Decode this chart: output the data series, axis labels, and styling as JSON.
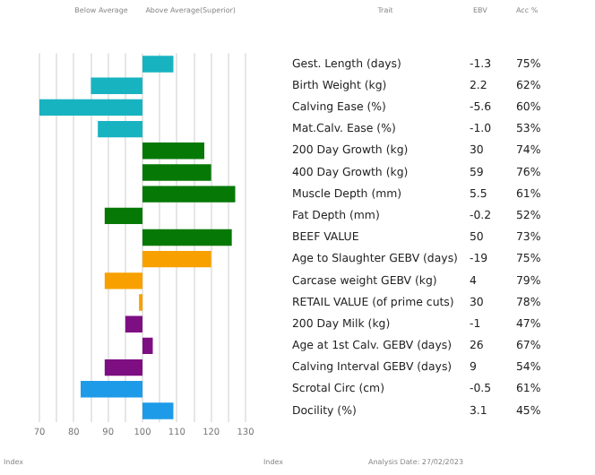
{
  "chart_data": {
    "type": "bar",
    "orientation": "horizontal",
    "xlabel": "Index",
    "categories": [
      "Gest. Length (days)",
      "Birth Weight (kg)",
      "Calving Ease (%)",
      "Mat.Calv. Ease (%)",
      "200 Day Growth (kg)",
      "400 Day Growth (kg)",
      "Muscle Depth (mm)",
      "Fat Depth (mm)",
      "BEEF VALUE",
      "Age to Slaughter GEBV (days)",
      "Carcase weight GEBV (kg)",
      "RETAIL VALUE (of prime cuts)",
      "200 Day Milk (kg)",
      "Age at 1st Calv. GEBV (days)",
      "Calving Interval GEBV (days)",
      "Scrotal Circ (cm)",
      "Docility (%)"
    ],
    "base": [
      100,
      100,
      100,
      100,
      100,
      100,
      100,
      100,
      100,
      100,
      100,
      100,
      100,
      100,
      100,
      100,
      100
    ],
    "values": [
      9,
      -15,
      -30,
      -13,
      18,
      20,
      27,
      -11,
      26,
      20,
      -11,
      -1,
      -5,
      3,
      -11,
      -18,
      9
    ],
    "colors": [
      "#17b3c1",
      "#17b3c1",
      "#17b3c1",
      "#17b3c1",
      "#067806",
      "#067806",
      "#067806",
      "#067806",
      "#067806",
      "#f7a000",
      "#f7a000",
      "#f7a000",
      "#7d0f82",
      "#7d0f82",
      "#7d0f82",
      "#1e9be8",
      "#1e9be8"
    ],
    "xlim": [
      70,
      130
    ],
    "xticks": [
      70,
      {
        "value": 75,
        "label": null
      },
      80,
      {
        "value": 85,
        "label": null
      },
      90,
      {
        "value": 95,
        "label": null
      },
      100,
      {
        "value": 105,
        "label": null
      },
      110,
      {
        "value": 115,
        "label": null
      },
      120,
      {
        "value": 125,
        "label": null
      },
      130
    ],
    "grid": "x",
    "legend": false,
    "annotations": [
      "Below Average",
      "Above Average(Superior)",
      "Trait",
      "EBV",
      "Acc %",
      "Index",
      "Analysis Date: 27/02/2023",
      "-1.3",
      "75%",
      "2.2",
      "62%",
      "-5.6",
      "60%",
      "-1.0",
      "53%",
      "30",
      "74%",
      "59",
      "76%",
      "5.5",
      "61%",
      "-0.2",
      "52%",
      "50",
      "73%",
      "-19",
      "75%",
      "4",
      "79%",
      "30",
      "78%",
      "-1",
      "47%",
      "26",
      "67%",
      "9",
      "54%",
      "-0.5",
      "61%",
      "3.1",
      "45%"
    ]
  }
}
